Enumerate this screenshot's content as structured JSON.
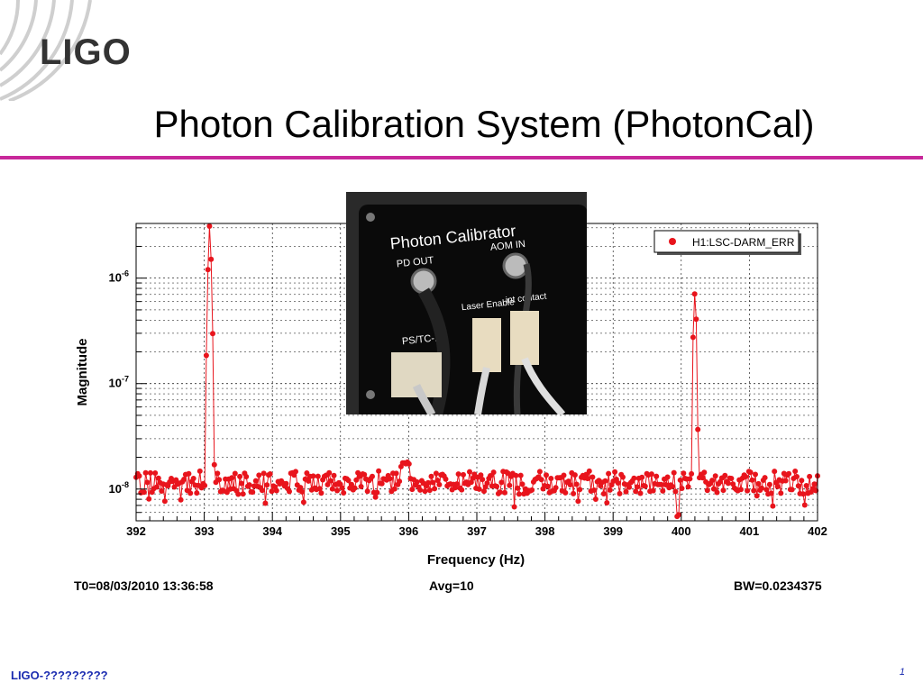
{
  "slide": {
    "logo_text": "LIGO",
    "title": "Photon Calibration System (PhotonCal)",
    "footer_id": "LIGO-?????????",
    "page_number": "1",
    "accent_color": "#c8289a"
  },
  "photo": {
    "panel_title": "Photon Calibrator",
    "labels": [
      "PD OUT",
      "AOM IN",
      "Laser Enable",
      "int contact",
      "PS/TC-1"
    ]
  },
  "plot_info": {
    "t0": "T0=08/03/2010 13:36:58",
    "avg": "Avg=10",
    "bw": "BW=0.0234375"
  },
  "chart_data": {
    "type": "line",
    "xlabel": "Frequency (Hz)",
    "ylabel": "Magnitude",
    "xlim": [
      392,
      402
    ],
    "ylim": [
      5e-09,
      3.3e-06
    ],
    "yscale": "log",
    "grid": true,
    "legend_position": "top-right",
    "x_ticks": [
      392,
      393,
      394,
      395,
      396,
      397,
      398,
      399,
      400,
      401,
      402
    ],
    "y_ticks": [
      {
        "value": 1e-08,
        "base": "10",
        "exp": "-8"
      },
      {
        "value": 1e-07,
        "base": "10",
        "exp": "-7"
      },
      {
        "value": 1e-06,
        "base": "10",
        "exp": "-6"
      }
    ],
    "series": [
      {
        "name": "H1:LSC-DARM_ERR",
        "color": "#e8141c",
        "noise_floor": 1.15e-08,
        "features": [
          {
            "type": "line",
            "center": 393.08,
            "peak": 3e-06,
            "width": 0.03
          },
          {
            "type": "line",
            "center": 400.2,
            "peak": 8.5e-07,
            "width": 0.025
          },
          {
            "type": "hump",
            "center": 395.95,
            "peak": 2.1e-08,
            "width": 0.12
          }
        ]
      }
    ]
  }
}
